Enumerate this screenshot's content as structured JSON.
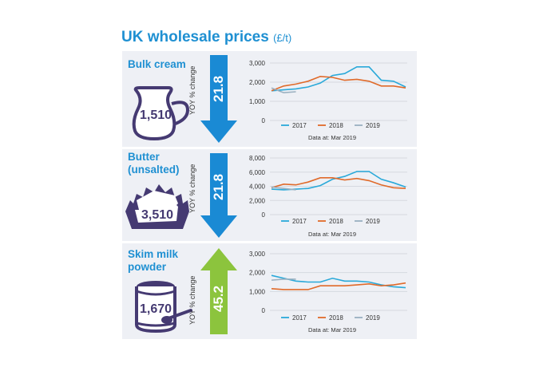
{
  "title": "UK wholesale prices",
  "title_unit": "(£/t)",
  "yoy_label": "YOY % change",
  "chart_data": [
    {
      "type": "line",
      "product": "Bulk cream",
      "icon": "cream-jug-icon",
      "price": "1,510",
      "yoy_change": "21.8",
      "direction": "down",
      "arrow_color": "#1a8ad4",
      "ylim": [
        0,
        3000
      ],
      "yticks": [
        "3,000",
        "2,000",
        "1,000",
        "0"
      ],
      "footnote": "Data at: Mar 2019",
      "series": [
        {
          "name": "2017",
          "color": "#2aa9d9",
          "values": [
            1550,
            1600,
            1650,
            1750,
            1950,
            2350,
            2450,
            2800,
            2800,
            2100,
            2050,
            1750
          ]
        },
        {
          "name": "2018",
          "color": "#e06a2a",
          "values": [
            1550,
            1800,
            1900,
            2050,
            2300,
            2250,
            2100,
            2150,
            2050,
            1800,
            1800,
            1700
          ]
        },
        {
          "name": "2019",
          "color": "#9ab0c0",
          "values": [
            1700,
            1450,
            1500
          ]
        }
      ]
    },
    {
      "type": "line",
      "product": "Butter (unsalted)",
      "icon": "butter-block-icon",
      "price": "3,510",
      "yoy_change": "21.8",
      "direction": "down",
      "arrow_color": "#1a8ad4",
      "ylim": [
        0,
        8000
      ],
      "yticks": [
        "8,000",
        "6,000",
        "4,000",
        "2,000",
        "0"
      ],
      "footnote": "Data at: Mar 2019",
      "series": [
        {
          "name": "2017",
          "color": "#2aa9d9",
          "values": [
            3600,
            3500,
            3600,
            3700,
            4100,
            5000,
            5400,
            6100,
            6100,
            5000,
            4500,
            3900
          ]
        },
        {
          "name": "2018",
          "color": "#e06a2a",
          "values": [
            3800,
            4300,
            4200,
            4600,
            5200,
            5200,
            4900,
            5100,
            4800,
            4200,
            3800,
            3700
          ]
        },
        {
          "name": "2019",
          "color": "#9ab0c0",
          "values": [
            3900,
            3700,
            3500
          ]
        }
      ]
    },
    {
      "type": "line",
      "product": "Skim milk powder",
      "icon": "milk-powder-tin-icon",
      "price": "1,670",
      "yoy_change": "45.2",
      "direction": "up",
      "arrow_color": "#8cc43d",
      "ylim": [
        0,
        3000
      ],
      "yticks": [
        "3,000",
        "2,000",
        "1,000",
        "0"
      ],
      "footnote": "Data at: Mar 2019",
      "series": [
        {
          "name": "2017",
          "color": "#2aa9d9",
          "values": [
            1850,
            1700,
            1550,
            1500,
            1500,
            1700,
            1550,
            1550,
            1500,
            1350,
            1250,
            1200
          ]
        },
        {
          "name": "2018",
          "color": "#e06a2a",
          "values": [
            1150,
            1100,
            1100,
            1100,
            1300,
            1300,
            1300,
            1350,
            1400,
            1300,
            1350,
            1450
          ]
        },
        {
          "name": "2019",
          "color": "#9ab0c0",
          "values": [
            1600,
            1650,
            1650
          ]
        }
      ]
    }
  ],
  "labels": {
    "bulk_cream": "Bulk cream",
    "butter_line1": "Butter",
    "butter_line2": "(unsalted)",
    "smp_line1": "Skim milk",
    "smp_line2": "powder"
  }
}
